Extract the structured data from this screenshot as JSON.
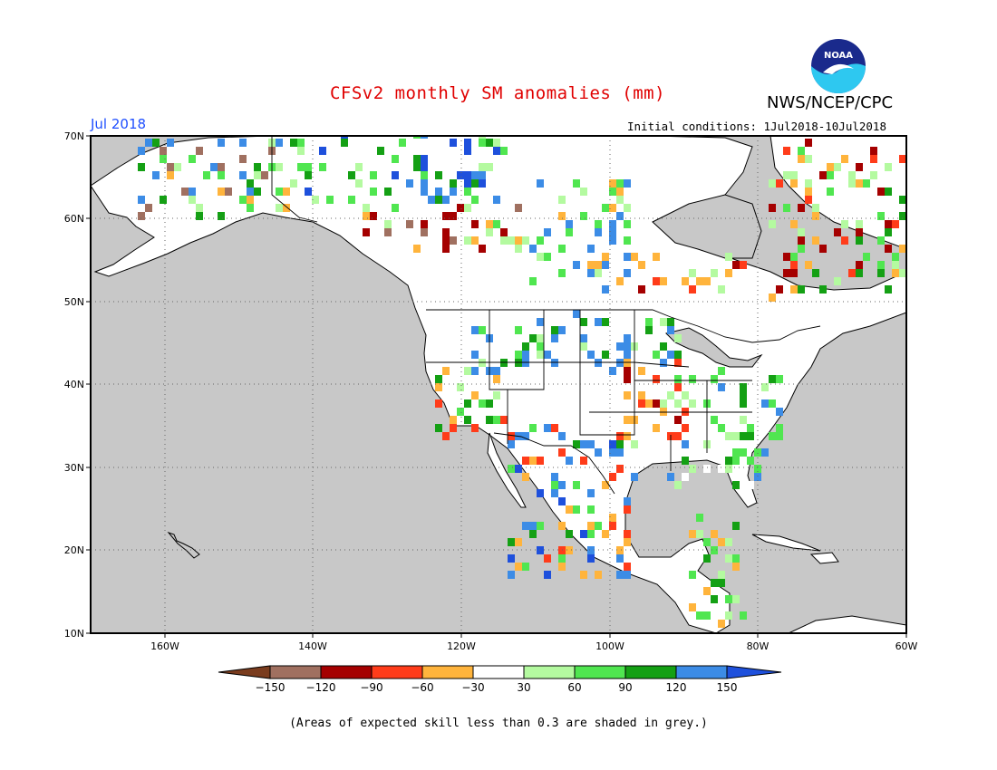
{
  "header": {
    "title": "CFSv2 monthly SM anomalies (mm)",
    "agency": "NWS/NCEP/CPC",
    "logo_text": "NOAA",
    "month": "Jul 2018",
    "initial_conditions": "Initial conditions: 1Jul2018-10Jul2018"
  },
  "map": {
    "lat_labels": [
      "70N",
      "60N",
      "50N",
      "40N",
      "30N",
      "20N",
      "10N"
    ],
    "lon_labels": [
      "160W",
      "140W",
      "120W",
      "100W",
      "80W",
      "60W"
    ],
    "ocean_color": "#c8c8c8",
    "land_color": "#ffffff"
  },
  "legend": {
    "ticks": [
      "-150",
      "-120",
      "-90",
      "-60",
      "-30",
      "30",
      "60",
      "90",
      "120",
      "150"
    ],
    "colors": [
      "#7a3c1e",
      "#a07060",
      "#a50000",
      "#ff3c1a",
      "#ffb43c",
      "#ffffff",
      "#b4faa0",
      "#50e650",
      "#14a014",
      "#3c8ce6",
      "#1e50dc"
    ]
  },
  "footnote": "(Areas of expected skill less than 0.3 are shaded in grey.)"
}
